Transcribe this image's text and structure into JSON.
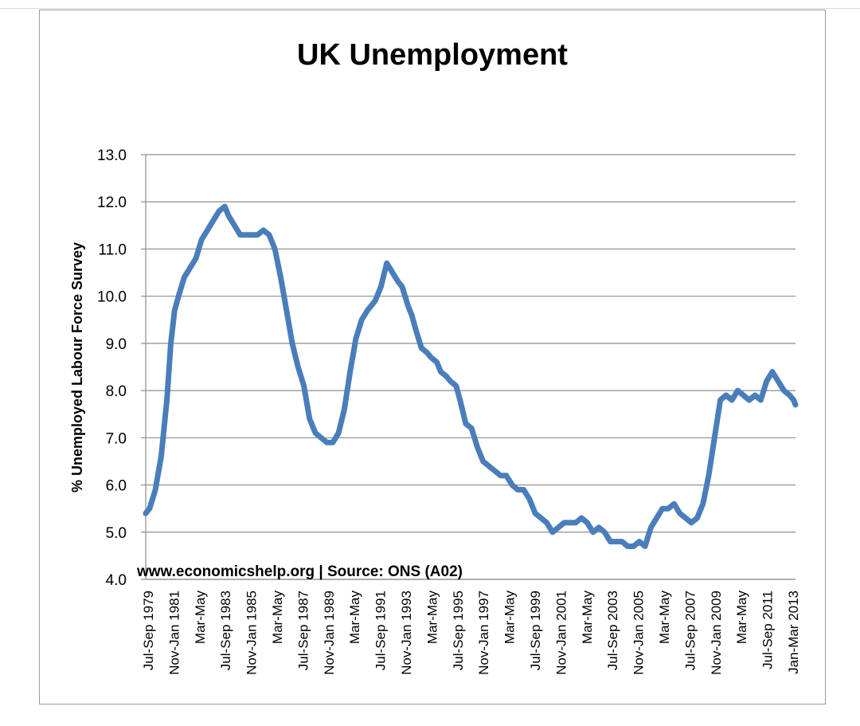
{
  "chart_data": {
    "type": "line",
    "title": "UK Unemployment",
    "ylabel": "% Unemployed Labour Force Survey",
    "xlabel": "",
    "annotation": "www.economicshelp.org | Source: ONS (A02)",
    "ylim": [
      4.0,
      13.0
    ],
    "y_ticks": [
      "4.0",
      "5.0",
      "6.0",
      "7.0",
      "8.0",
      "9.0",
      "10.0",
      "11.0",
      "12.0",
      "13.0"
    ],
    "x_tick_labels": [
      "Jul-Sep 1979",
      "Nov-Jan 1981",
      "Mar-May",
      "Jul-Sep 1983",
      "Nov-Jan 1985",
      "Mar-May",
      "Jul-Sep 1987",
      "Nov-Jan 1989",
      "Mar-May",
      "Jul-Sep 1991",
      "Nov-Jan 1993",
      "Mar-May",
      "Jul-Sep 1995",
      "Nov-Jan 1997",
      "Mar-May",
      "Jul-Sep 1999",
      "Nov-Jan 2001",
      "Mar-May",
      "Jul-Sep 2003",
      "Nov-Jan 2005",
      "Mar-May",
      "Jul-Sep 2007",
      "Nov-Jan 2009",
      "Mar-May",
      "Jul-Sep 2011",
      "Jan-Mar 2013"
    ],
    "grid": true,
    "legend": "none",
    "line_color": "#4a7ebb",
    "x": [
      1979.7,
      1979.9,
      1980.2,
      1980.5,
      1980.8,
      1981.0,
      1981.2,
      1981.4,
      1981.7,
      1982.0,
      1982.3,
      1982.6,
      1982.9,
      1983.2,
      1983.5,
      1983.8,
      1984.0,
      1984.3,
      1984.6,
      1984.9,
      1985.2,
      1985.5,
      1985.8,
      1986.1,
      1986.4,
      1986.7,
      1987.0,
      1987.3,
      1987.6,
      1987.9,
      1988.2,
      1988.5,
      1988.8,
      1989.1,
      1989.4,
      1989.7,
      1990.0,
      1990.3,
      1990.6,
      1990.9,
      1991.2,
      1991.4,
      1991.6,
      1991.9,
      1992.2,
      1992.5,
      1992.8,
      1993.0,
      1993.3,
      1993.5,
      1993.7,
      1994.0,
      1994.3,
      1994.5,
      1994.8,
      1995.0,
      1995.3,
      1995.5,
      1995.8,
      1996.0,
      1996.3,
      1996.6,
      1996.9,
      1997.2,
      1997.5,
      1997.8,
      1998.1,
      1998.4,
      1998.7,
      1999.0,
      1999.3,
      1999.6,
      1999.9,
      2000.2,
      2000.5,
      2000.8,
      2001.1,
      2001.4,
      2001.7,
      2002.0,
      2002.3,
      2002.6,
      2002.9,
      2003.2,
      2003.5,
      2003.8,
      2004.1,
      2004.4,
      2004.7,
      2005.0,
      2005.3,
      2005.6,
      2005.9,
      2006.2,
      2006.5,
      2006.8,
      2007.1,
      2007.4,
      2007.7,
      2008.0,
      2008.3,
      2008.6,
      2008.9,
      2009.2,
      2009.5,
      2009.8,
      2010.1,
      2010.4,
      2010.7,
      2011.0,
      2011.3,
      2011.6,
      2011.9,
      2012.2,
      2012.5,
      2012.8,
      2013.1,
      2013.3,
      2013.4
    ],
    "y": [
      5.4,
      5.5,
      5.9,
      6.6,
      7.8,
      9.0,
      9.7,
      10.0,
      10.4,
      10.6,
      10.8,
      11.2,
      11.4,
      11.6,
      11.8,
      11.9,
      11.7,
      11.5,
      11.3,
      11.3,
      11.3,
      11.3,
      11.4,
      11.3,
      11.0,
      10.4,
      9.7,
      9.0,
      8.5,
      8.1,
      7.4,
      7.1,
      7.0,
      6.9,
      6.9,
      7.1,
      7.6,
      8.4,
      9.1,
      9.5,
      9.7,
      9.8,
      9.9,
      10.2,
      10.7,
      10.5,
      10.3,
      10.2,
      9.8,
      9.6,
      9.3,
      8.9,
      8.8,
      8.7,
      8.6,
      8.4,
      8.3,
      8.2,
      8.1,
      7.8,
      7.3,
      7.2,
      6.8,
      6.5,
      6.4,
      6.3,
      6.2,
      6.2,
      6.0,
      5.9,
      5.9,
      5.7,
      5.4,
      5.3,
      5.2,
      5.0,
      5.1,
      5.2,
      5.2,
      5.2,
      5.3,
      5.2,
      5.0,
      5.1,
      5.0,
      4.8,
      4.8,
      4.8,
      4.7,
      4.7,
      4.8,
      4.7,
      5.1,
      5.3,
      5.5,
      5.5,
      5.6,
      5.4,
      5.3,
      5.2,
      5.3,
      5.6,
      6.2,
      7.0,
      7.8,
      7.9,
      7.8,
      8.0,
      7.9,
      7.8,
      7.9,
      7.8,
      8.2,
      8.4,
      8.2,
      8.0,
      7.9,
      7.8,
      7.7
    ],
    "x_range": [
      1979.7,
      2013.4
    ]
  }
}
